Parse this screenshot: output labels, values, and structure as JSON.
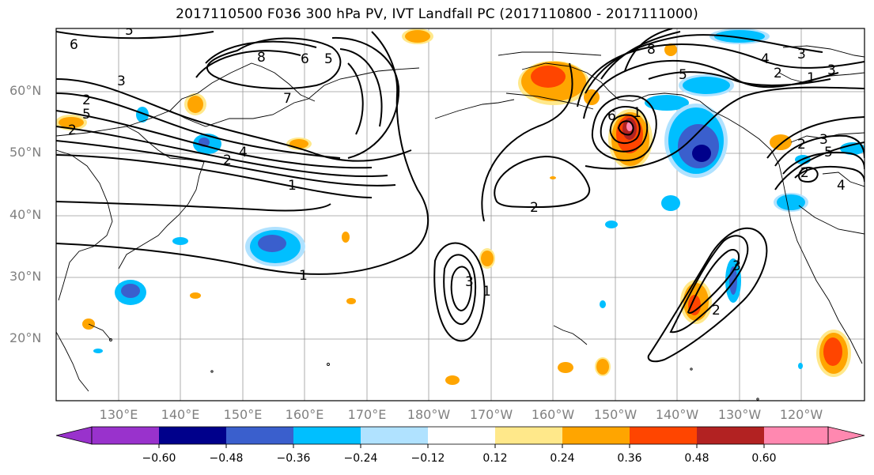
{
  "title": "2017110500 F036 300 hPa PV, IVT Landfall PC (2017110800 - 2017111000)",
  "map": {
    "lat_ticks": [
      "60°N",
      "50°N",
      "40°N",
      "30°N",
      "20°N"
    ],
    "lon_ticks": [
      "130°E",
      "140°E",
      "150°E",
      "160°E",
      "170°E",
      "180°W",
      "170°W",
      "160°W",
      "150°W",
      "140°W",
      "130°W",
      "120°W"
    ],
    "contour_labels": [
      "6",
      "5",
      "3",
      "2",
      "5",
      "2",
      "4",
      "2",
      "1",
      "8",
      "6",
      "5",
      "7",
      "1",
      "8",
      "5",
      "4",
      "3",
      "2",
      "1",
      "3",
      "6",
      "2",
      "3",
      "5",
      "2",
      "4",
      "1",
      "3",
      "2",
      "2",
      "3",
      "1"
    ]
  },
  "colorbar": {
    "ticks": [
      "−0.60",
      "−0.48",
      "−0.36",
      "−0.24",
      "−0.12",
      "0.12",
      "0.24",
      "0.36",
      "0.48",
      "0.60"
    ],
    "colors": [
      "#9932cc",
      "#00008b",
      "#3a5fcd",
      "#00bfff",
      "#b0e2ff",
      "#ffffff",
      "#ffe88a",
      "#ffa500",
      "#ff4500",
      "#b22222",
      "#ff88b0"
    ]
  }
}
